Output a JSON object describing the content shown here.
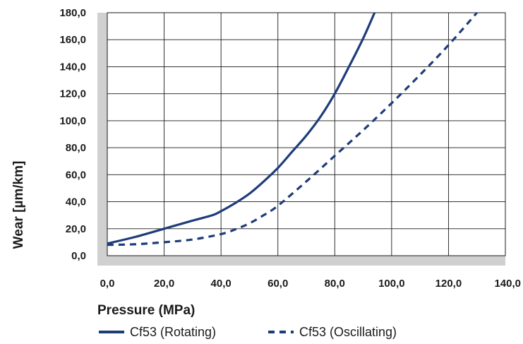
{
  "chart_data": {
    "type": "line",
    "xlabel": "Pressure (MPa)",
    "ylabel": "Wear [µm/km]",
    "xlim": [
      0,
      140
    ],
    "ylim": [
      0,
      180
    ],
    "x_ticks": [
      "0,0",
      "20,0",
      "40,0",
      "60,0",
      "80,0",
      "100,0",
      "120,0",
      "140,0"
    ],
    "y_ticks": [
      "0,0",
      "20,0",
      "40,0",
      "60,0",
      "80,0",
      "100,0",
      "120,0",
      "140,0",
      "160,0",
      "180,0"
    ],
    "grid": true,
    "legend_position": "bottom",
    "series": [
      {
        "name": "Cf53 (Rotating)",
        "style": "solid",
        "color": "#1f3c7a",
        "x": [
          0,
          10,
          20,
          30,
          37,
          40,
          45,
          50,
          55,
          60,
          65,
          70,
          75,
          80,
          85,
          90,
          94
        ],
        "y": [
          9,
          14,
          20,
          26,
          30,
          33,
          39,
          46,
          55,
          65,
          77,
          89,
          103,
          120,
          140,
          161,
          180
        ]
      },
      {
        "name": "Cf53 (Oscillating)",
        "style": "dashed",
        "color": "#1f3c7a",
        "x": [
          0,
          10,
          20,
          30,
          40,
          45,
          50,
          55,
          60,
          70,
          80,
          90,
          100,
          110,
          120,
          130
        ],
        "y": [
          8,
          8.5,
          10,
          12,
          16,
          19.5,
          24,
          30,
          37,
          55,
          74,
          93,
          113,
          134,
          156,
          180
        ]
      }
    ]
  }
}
